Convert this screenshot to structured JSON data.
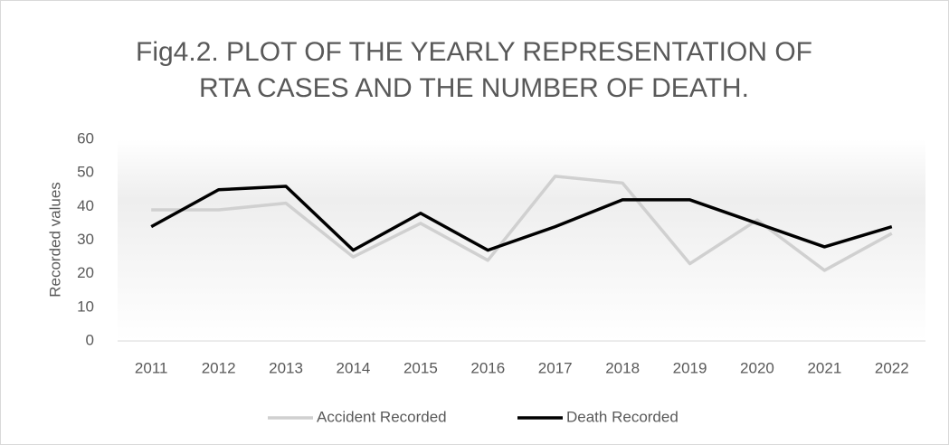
{
  "chart_data": {
    "type": "line",
    "title": "Fig4.2. PLOT OF THE YEARLY REPRESENTATION OF RTA CASES AND THE NUMBER OF DEATH.",
    "y_label": "Recorded values",
    "categories": [
      "2011",
      "2012",
      "2013",
      "2014",
      "2015",
      "2016",
      "2017",
      "2018",
      "2019",
      "2020",
      "2021",
      "2022"
    ],
    "series": [
      {
        "name": "Accident Recorded",
        "color": "#d0d0d0",
        "values": [
          39,
          39,
          41,
          25,
          35,
          24,
          49,
          47,
          23,
          36,
          21,
          32
        ]
      },
      {
        "name": "Death Recorded",
        "color": "#000000",
        "values": [
          34,
          45,
          46,
          27,
          38,
          27,
          34,
          42,
          42,
          35,
          28,
          34
        ]
      }
    ],
    "ylim": [
      0,
      60
    ],
    "yticks": [
      0,
      10,
      20,
      30,
      40,
      50,
      60
    ],
    "grid": false,
    "legend": "bottom"
  }
}
